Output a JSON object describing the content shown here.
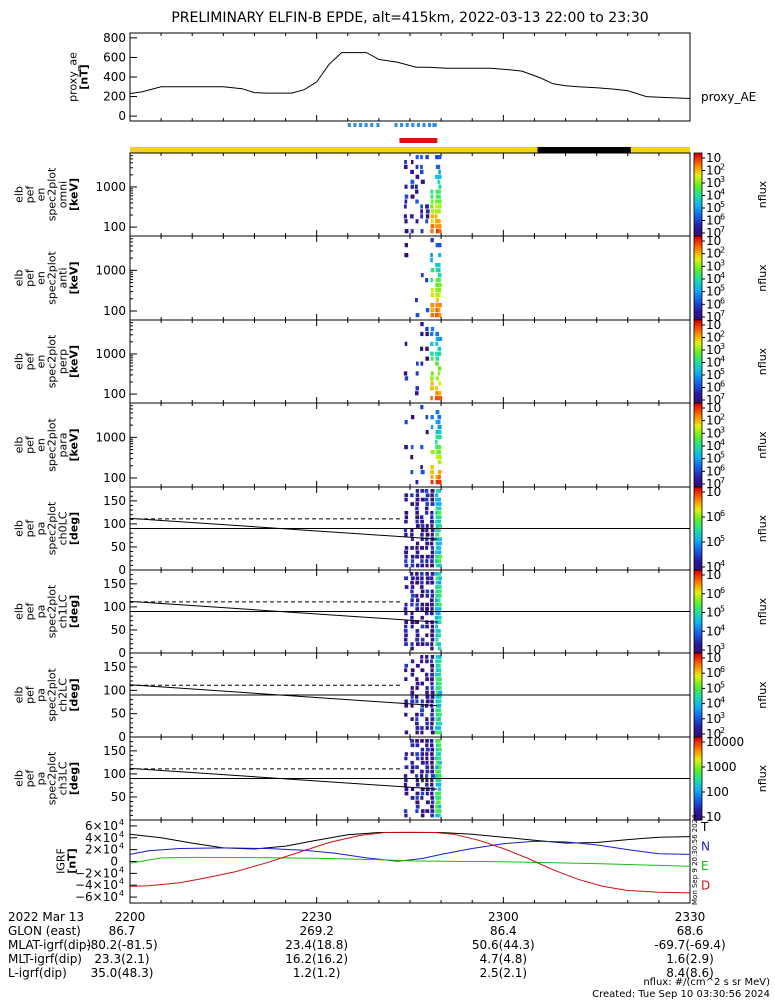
{
  "page": {
    "title": "PRELIMINARY ELFIN-B EPDE, alt=415km, 2022-03-13 22:00 to 23:30",
    "footer_units": "nflux: #/(cm^2 s sr MeV)",
    "footer_created": "Created: Tue Sep 10 03:30:56 2024",
    "side_stamp": "Mon Sep  9 20:30:56 2024"
  },
  "colors": {
    "spin_blue": "#2b8fe8",
    "science_red": "#e01010",
    "sun_yellow": "#f2d40a",
    "shadow_black": "#000000",
    "T": "#000000",
    "N": "#1a1ad0",
    "E": "#10c010",
    "D": "#d01010"
  },
  "chart_data": [
    {
      "id": "proxy_ae",
      "type": "line",
      "ylabel": [
        "proxy_ae",
        "[nT]"
      ],
      "ylim": [
        -50,
        850
      ],
      "yticks": [
        "800",
        "600",
        "400",
        "200",
        "0"
      ],
      "ytick_values": [
        800,
        600,
        400,
        200,
        0
      ],
      "legend": "proxy_AE",
      "x": [
        0,
        2,
        5,
        10,
        15,
        18,
        20,
        22,
        26,
        28,
        30,
        32,
        34,
        38,
        40,
        43,
        46,
        48,
        51,
        54,
        56,
        58,
        60,
        63,
        66,
        68,
        70,
        72,
        75,
        78,
        80,
        83,
        86,
        88,
        90
      ],
      "y": [
        230,
        250,
        300,
        300,
        300,
        280,
        240,
        235,
        235,
        270,
        350,
        530,
        650,
        650,
        580,
        550,
        500,
        500,
        490,
        490,
        490,
        490,
        480,
        460,
        390,
        330,
        310,
        300,
        290,
        275,
        260,
        200,
        190,
        185,
        180
      ]
    },
    {
      "id": "spin_ticks",
      "type": "marks",
      "segments": [
        [
          35.0,
          35.5
        ],
        [
          35.9,
          36.4
        ],
        [
          36.8,
          37.3
        ],
        [
          37.7,
          38.2
        ],
        [
          38.6,
          39.1
        ],
        [
          39.6,
          40.1
        ],
        [
          42.5,
          43.0
        ],
        [
          43.4,
          43.9
        ],
        [
          44.3,
          44.8
        ],
        [
          45.2,
          45.7
        ],
        [
          46.1,
          46.6
        ],
        [
          47.0,
          47.5
        ],
        [
          47.9,
          48.4
        ],
        [
          48.6,
          49.3
        ]
      ]
    },
    {
      "id": "science_bar",
      "type": "marks",
      "start": 43.3,
      "end": 49.4
    },
    {
      "id": "illumination_bar",
      "type": "marks",
      "segments": [
        [
          0,
          65.5,
          "sun"
        ],
        [
          65.5,
          80.5,
          "shadow"
        ],
        [
          80.5,
          90,
          "sun"
        ]
      ]
    },
    {
      "id": "omni",
      "type": "heatmap",
      "ylabel": [
        "elb",
        "pef",
        "en",
        "spec2plot",
        "omni",
        "[keV]"
      ],
      "y_log": true,
      "ylim": [
        60,
        7000
      ],
      "yticks": [
        "1000",
        "100"
      ],
      "ytick_values": [
        1000,
        100
      ],
      "cbar_ticks": [
        "10",
        "2",
        "3",
        "4",
        "5",
        "6",
        "7"
      ],
      "cbar_values": [
        7,
        6,
        5,
        4,
        3,
        2,
        1
      ],
      "cbar_label": "nflux"
    },
    {
      "id": "anti",
      "type": "heatmap",
      "ylabel": [
        "elb",
        "pef",
        "en",
        "spec2plot",
        "anti",
        "[keV]"
      ],
      "y_log": true,
      "ylim": [
        60,
        7000
      ],
      "yticks": [
        "1000",
        "100"
      ],
      "ytick_values": [
        1000,
        100
      ],
      "cbar_ticks": [
        "10",
        "2",
        "3",
        "4",
        "5",
        "6",
        "7"
      ],
      "cbar_values": [
        7,
        6,
        5,
        4,
        3,
        2,
        1
      ],
      "cbar_label": "nflux"
    },
    {
      "id": "perp",
      "type": "heatmap",
      "ylabel": [
        "elb",
        "pef",
        "en",
        "spec2plot",
        "perp",
        "[keV]"
      ],
      "y_log": true,
      "ylim": [
        60,
        7000
      ],
      "yticks": [
        "1000",
        "100"
      ],
      "ytick_values": [
        1000,
        100
      ],
      "cbar_ticks": [
        "10",
        "2",
        "3",
        "4",
        "5",
        "6",
        "7"
      ],
      "cbar_values": [
        7,
        6,
        5,
        4,
        3,
        2,
        1
      ],
      "cbar_label": "nflux"
    },
    {
      "id": "para",
      "type": "heatmap",
      "ylabel": [
        "elb",
        "pef",
        "en",
        "spec2plot",
        "para",
        "[keV]"
      ],
      "y_log": true,
      "ylim": [
        60,
        7000
      ],
      "yticks": [
        "1000",
        "100"
      ],
      "ytick_values": [
        1000,
        100
      ],
      "cbar_ticks": [
        "10",
        "2",
        "3",
        "4",
        "5",
        "6",
        "7"
      ],
      "cbar_values": [
        7,
        6,
        5,
        4,
        3,
        2,
        1
      ],
      "cbar_label": "nflux"
    },
    {
      "id": "ch0LC",
      "type": "heatmap",
      "ylabel": [
        "elb",
        "pef",
        "pa",
        "spec2plot",
        "ch0LC",
        "[deg]"
      ],
      "ylim": [
        0,
        180
      ],
      "yticks": [
        "150",
        "100",
        "50",
        "0"
      ],
      "ytick_values": [
        150,
        100,
        50,
        0
      ],
      "cbar_ticks": [
        "10",
        "6",
        "5",
        "4"
      ],
      "cbar_values": [
        7,
        6,
        5,
        4
      ],
      "cbar_label": "nflux",
      "lc_start": 112,
      "lc_end": 67,
      "alc_start": 111
    },
    {
      "id": "ch1LC",
      "type": "heatmap",
      "ylabel": [
        "elb",
        "pef",
        "pa",
        "spec2plot",
        "ch1LC",
        "[deg]"
      ],
      "ylim": [
        0,
        180
      ],
      "yticks": [
        "150",
        "100",
        "50",
        "0"
      ],
      "ytick_values": [
        150,
        100,
        50,
        0
      ],
      "cbar_ticks": [
        "10",
        "6",
        "5",
        "4",
        "3"
      ],
      "cbar_values": [
        7,
        6,
        5,
        4,
        3
      ],
      "cbar_label": "nflux",
      "lc_start": 112,
      "lc_end": 67,
      "alc_start": 111
    },
    {
      "id": "ch2LC",
      "type": "heatmap",
      "ylabel": [
        "elb",
        "pef",
        "pa",
        "spec2plot",
        "ch2LC",
        "[deg]"
      ],
      "ylim": [
        0,
        180
      ],
      "yticks": [
        "150",
        "100",
        "50",
        "0"
      ],
      "ytick_values": [
        150,
        100,
        50,
        0
      ],
      "cbar_ticks": [
        "10",
        "6",
        "5",
        "4",
        "3",
        "2"
      ],
      "cbar_values": [
        7,
        6,
        5,
        4,
        3,
        2
      ],
      "cbar_label": "nflux",
      "lc_start": 112,
      "lc_end": 67,
      "alc_start": 111
    },
    {
      "id": "ch3LC",
      "type": "heatmap",
      "ylabel": [
        "elb",
        "pef",
        "pa",
        "spec2plot",
        "ch3LC",
        "[deg]"
      ],
      "ylim": [
        0,
        180
      ],
      "yticks": [
        "150",
        "100",
        "50"
      ],
      "ytick_values": [
        150,
        100,
        50
      ],
      "cbar_ticks": [
        "10000",
        "1000",
        "100",
        "10"
      ],
      "cbar_values": [
        4,
        3,
        2,
        1
      ],
      "cbar_label": "nflux",
      "lc_start": 112,
      "lc_end": 67,
      "alc_start": 111
    },
    {
      "id": "igrf",
      "type": "line",
      "ylabel": [
        "IGRF",
        "[nT]"
      ],
      "ylim": [
        -70000,
        70000
      ],
      "ytick_values": [
        60000,
        40000,
        20000,
        0,
        -20000,
        -40000,
        -60000
      ],
      "yticks_main": [
        "6×10",
        "4×10",
        "2×10",
        "0",
        "−2×10",
        "−4×10",
        "−6×10"
      ],
      "yticks_exp": [
        "4",
        "4",
        "4",
        "",
        "4",
        "4",
        "4"
      ],
      "series": [
        {
          "name": "T",
          "color_key": "T",
          "x": [
            0,
            5,
            10,
            15,
            20,
            25,
            30,
            35,
            40,
            45,
            50,
            55,
            60,
            65,
            70,
            75,
            80,
            85,
            90
          ],
          "y": [
            46000,
            40000,
            31000,
            23000,
            21000,
            26000,
            36000,
            45000,
            49000,
            49000,
            49000,
            46000,
            41000,
            36000,
            31000,
            32000,
            37000,
            41000,
            42000
          ]
        },
        {
          "name": "N",
          "color_key": "N",
          "x": [
            0,
            3,
            8,
            15,
            22,
            28,
            33,
            38,
            43,
            47,
            50,
            55,
            60,
            65,
            70,
            75,
            80,
            85,
            90
          ],
          "y": [
            12000,
            18000,
            22000,
            23000,
            22000,
            19000,
            14000,
            6000,
            500,
            5000,
            12000,
            22000,
            30000,
            34000,
            33000,
            28000,
            20000,
            13000,
            12000
          ]
        },
        {
          "name": "E",
          "color_key": "E",
          "x": [
            0,
            5,
            10,
            20,
            30,
            40,
            45,
            50,
            55,
            60,
            65,
            70,
            75,
            80,
            85,
            90
          ],
          "y": [
            -3000,
            6000,
            7000,
            6500,
            5500,
            3000,
            1000,
            500,
            0,
            -500,
            -1500,
            -2500,
            -3500,
            -5000,
            -6500,
            -8000
          ]
        },
        {
          "name": "D",
          "color_key": "D",
          "x": [
            0,
            3,
            8,
            12,
            17,
            22,
            27,
            32,
            37,
            41,
            45,
            49,
            52,
            56,
            60,
            64,
            68,
            72,
            76,
            80,
            85,
            90
          ],
          "y": [
            -42000,
            -41000,
            -36000,
            -28000,
            -17000,
            -2000,
            15000,
            32000,
            44000,
            49000,
            49500,
            49000,
            46000,
            36000,
            22000,
            5000,
            -14000,
            -30000,
            -42000,
            -49000,
            -52000,
            -53000
          ]
        }
      ],
      "legend": [
        "T",
        "N",
        "E",
        "D"
      ]
    }
  ],
  "x_axis": {
    "tick_labels": [
      "2200",
      "2230",
      "2300",
      "2330"
    ],
    "tick_values": [
      0,
      30,
      60,
      90
    ]
  },
  "ephemeris": {
    "date": "2022 Mar 13",
    "rows": [
      {
        "label": "GLON (east)",
        "values": [
          "86.7",
          "269.2",
          "86.4",
          "68.6"
        ]
      },
      {
        "label": "MLAT-igrf(dip)",
        "values": [
          "-80.2(-81.5)",
          "23.4(18.8)",
          "50.6(44.3)",
          "-69.7(-69.4)"
        ]
      },
      {
        "label": "MLT-igrf(dip)",
        "values": [
          "23.3(2.1)",
          "16.2(16.2)",
          "4.7(4.8)",
          "1.6(2.9)"
        ]
      },
      {
        "label": "L-igrf(dip)",
        "values": [
          "35.0(48.3)",
          "1.2(1.2)",
          "2.5(2.1)",
          "8.4(8.6)"
        ]
      }
    ]
  }
}
